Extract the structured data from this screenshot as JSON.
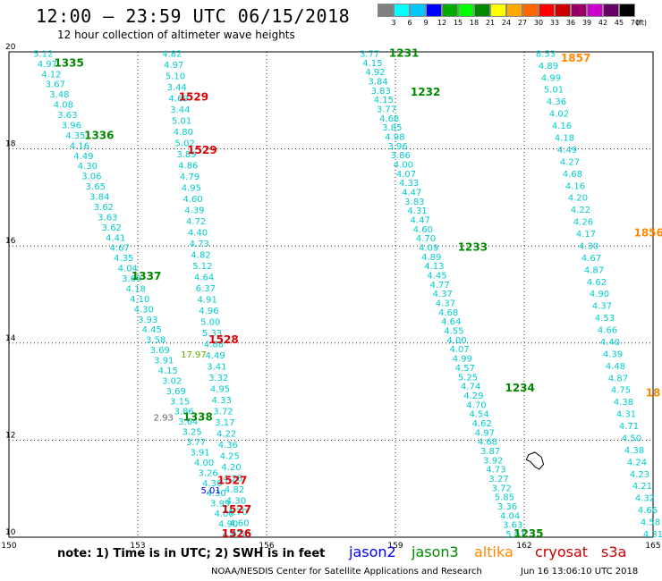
{
  "header": {
    "title": "12:00 — 23:59 UTC 06/15/2018",
    "subtitle": "12 hour collection of altimeter wave heights"
  },
  "scale": {
    "unit": "(ft)",
    "labels": [
      "3",
      "6",
      "9",
      "12",
      "15",
      "18",
      "21",
      "24",
      "27",
      "30",
      "33",
      "36",
      "39",
      "42",
      "45",
      "70"
    ],
    "colors": [
      "#808080",
      "#00ffff",
      "#00c8ff",
      "#0000ff",
      "#00aa00",
      "#00ff00",
      "#008800",
      "#ffff00",
      "#ffaa00",
      "#ff6600",
      "#ff0000",
      "#cc0000",
      "#990066",
      "#cc00cc",
      "#660066",
      "#000000"
    ]
  },
  "footer": {
    "note": "note:  1) Time is in UTC;  2) SWH is in feet",
    "credit": "NOAA/NESDIS Center for Satellite Applications and Research",
    "timestamp": "Jun 16 13:06:10 UTC 2018",
    "legend": [
      {
        "name": "jason2",
        "color": "#0000ff"
      },
      {
        "name": "jason3",
        "color": "#008800"
      },
      {
        "name": "altika",
        "color": "#ff8800"
      },
      {
        "name": "cryosat",
        "color": "#cc0000"
      },
      {
        "name": "s3a",
        "color": "#cc0000"
      }
    ]
  },
  "chart_data": {
    "type": "scatter",
    "x_ticks": [
      "150",
      "153",
      "156",
      "159",
      "162",
      "165"
    ],
    "y_ticks": [
      "20",
      "18",
      "16",
      "14",
      "12",
      "10"
    ],
    "xlim": [
      150,
      165
    ],
    "ylim": [
      10,
      20
    ],
    "grid": true,
    "colors": {
      "cyan": "#00cccc",
      "green": "#008800",
      "red": "#dd0000",
      "orange": "#ff8800",
      "blue": "#0000dd",
      "gray": "#666666",
      "lime": "#66aa00"
    },
    "tracks": [
      {
        "name": "track-1336",
        "color": "cyan",
        "x0": 150.8,
        "x1": 155.2,
        "y0": 19.9,
        "y1": 10.0,
        "values": [
          "5.12",
          "4.97",
          "4.12",
          "3.67",
          "3.48",
          "4.08",
          "3.63",
          "3.96",
          "4.35",
          "4.16",
          "4.49",
          "4.30",
          "3.06",
          "3.65",
          "3.84",
          "3.62",
          "3.63",
          "3.62",
          "4.41",
          "4.67",
          "4.35",
          "4.04",
          "3.69",
          "4.18",
          "4.10",
          "4.30",
          "3.93",
          "4.45",
          "3.58",
          "3.69",
          "3.91",
          "4.15",
          "3.02",
          "3.69",
          "3.15",
          "3.86",
          "3.64",
          "3.25",
          "3.77",
          "3.91",
          "4.00",
          "3.26",
          "4.36",
          "4.30",
          "3.99",
          "4.00",
          "4.90",
          "4.92"
        ]
      },
      {
        "name": "track-1529",
        "color": "cyan",
        "x0": 153.8,
        "x1": 155.4,
        "y0": 19.9,
        "y1": 10.0,
        "values": [
          "4.82",
          "4.97",
          "5.10",
          "3.44",
          "4.69",
          "3.44",
          "5.01",
          "4.80",
          "5.02",
          "3.89",
          "4.86",
          "4.79",
          "4.95",
          "4.60",
          "4.39",
          "4.72",
          "4.40",
          "4.73",
          "4.82",
          "5.12",
          "4.64",
          "6.37",
          "4.91",
          "4.96",
          "5.00",
          "5.33",
          "4.88",
          "4.49",
          "3.41",
          "3.32",
          "4.95",
          "4.33",
          "3.72",
          "3.17",
          "4.22",
          "4.36",
          "4.25",
          "4.20",
          "4.28",
          "4.82",
          "4.30",
          "4.70",
          "4.60",
          "4.55"
        ]
      },
      {
        "name": "track-1232",
        "color": "cyan",
        "x0": 158.4,
        "x1": 161.8,
        "y0": 19.9,
        "y1": 10.0,
        "values": [
          "3.77",
          "4.15",
          "4.92",
          "3.84",
          "3.83",
          "4.15",
          "3.77",
          "4.68",
          "3.85",
          "4.98",
          "3.96",
          "3.86",
          "4.00",
          "4.07",
          "4.33",
          "4.47",
          "3.83",
          "4.31",
          "4.47",
          "4.60",
          "4.70",
          "4.09",
          "4.89",
          "4.13",
          "4.45",
          "4.77",
          "4.37",
          "4.37",
          "4.68",
          "4.64",
          "4.55",
          "4.00",
          "4.07",
          "4.99",
          "4.57",
          "5.25",
          "4.74",
          "4.29",
          "4.70",
          "4.54",
          "4.62",
          "4.97",
          "4.68",
          "3.87",
          "3.92",
          "4.73",
          "3.27",
          "3.72",
          "5.85",
          "3.36",
          "4.04",
          "3.63",
          "5.01"
        ]
      },
      {
        "name": "track-1857",
        "color": "cyan",
        "x0": 162.5,
        "x1": 165.0,
        "y0": 19.9,
        "y1": 10.0,
        "values": [
          "8.53",
          "4.89",
          "4.99",
          "5.01",
          "4.36",
          "4.02",
          "4.16",
          "4.18",
          "4.49",
          "4.27",
          "4.68",
          "4.16",
          "4.20",
          "4.22",
          "4.26",
          "4.17",
          "4.30",
          "4.67",
          "4.87",
          "4.62",
          "4.90",
          "4.37",
          "4.53",
          "4.66",
          "4.40",
          "4.39",
          "4.48",
          "4.87",
          "4.75",
          "4.38",
          "4.31",
          "4.71",
          "4.50",
          "4.38",
          "4.24",
          "4.23",
          "4.21",
          "4.32",
          "4.66",
          "4.58",
          "4.31"
        ]
      }
    ],
    "extras": [
      {
        "text": "17.97",
        "color": "lime",
        "x": 154.3,
        "y": 13.7
      },
      {
        "text": "2.93",
        "color": "gray",
        "x": 153.6,
        "y": 12.4
      },
      {
        "text": "5.01",
        "color": "blue",
        "x": 154.7,
        "y": 10.9
      }
    ],
    "time_labels": [
      {
        "text": "1335",
        "color": "green",
        "x": 151.4,
        "y": 19.7
      },
      {
        "text": "1336",
        "color": "green",
        "x": 152.1,
        "y": 18.2
      },
      {
        "text": "1337",
        "color": "green",
        "x": 153.2,
        "y": 15.3
      },
      {
        "text": "1338",
        "color": "green",
        "x": 154.4,
        "y": 12.4
      },
      {
        "text": "1529",
        "color": "red",
        "x": 154.3,
        "y": 19.0
      },
      {
        "text": "1529",
        "color": "red",
        "x": 154.5,
        "y": 17.9
      },
      {
        "text": "1528",
        "color": "red",
        "x": 155.0,
        "y": 14.0
      },
      {
        "text": "1527",
        "color": "red",
        "x": 155.2,
        "y": 11.1
      },
      {
        "text": "1527",
        "color": "red",
        "x": 155.3,
        "y": 10.5
      },
      {
        "text": "1526",
        "color": "red",
        "x": 155.3,
        "y": 10.0
      },
      {
        "text": "1231",
        "color": "green",
        "x": 159.2,
        "y": 19.9
      },
      {
        "text": "1232",
        "color": "green",
        "x": 159.7,
        "y": 19.1
      },
      {
        "text": "1233",
        "color": "green",
        "x": 160.8,
        "y": 15.9
      },
      {
        "text": "1234",
        "color": "green",
        "x": 161.9,
        "y": 13.0
      },
      {
        "text": "1235",
        "color": "green",
        "x": 162.1,
        "y": 10.0
      },
      {
        "text": "1857",
        "color": "orange",
        "x": 163.2,
        "y": 19.8
      },
      {
        "text": "1856",
        "color": "orange",
        "x": 164.9,
        "y": 16.2
      },
      {
        "text": "18",
        "color": "orange",
        "x": 165.0,
        "y": 12.9
      }
    ],
    "contours": [
      {
        "name": "land-outline",
        "points": [
          [
            162.1,
            11.7
          ],
          [
            162.25,
            11.75
          ],
          [
            162.4,
            11.65
          ],
          [
            162.45,
            11.5
          ],
          [
            162.35,
            11.4
          ],
          [
            162.25,
            11.45
          ],
          [
            162.15,
            11.55
          ],
          [
            162.05,
            11.6
          ],
          [
            162.1,
            11.7
          ]
        ]
      }
    ]
  }
}
